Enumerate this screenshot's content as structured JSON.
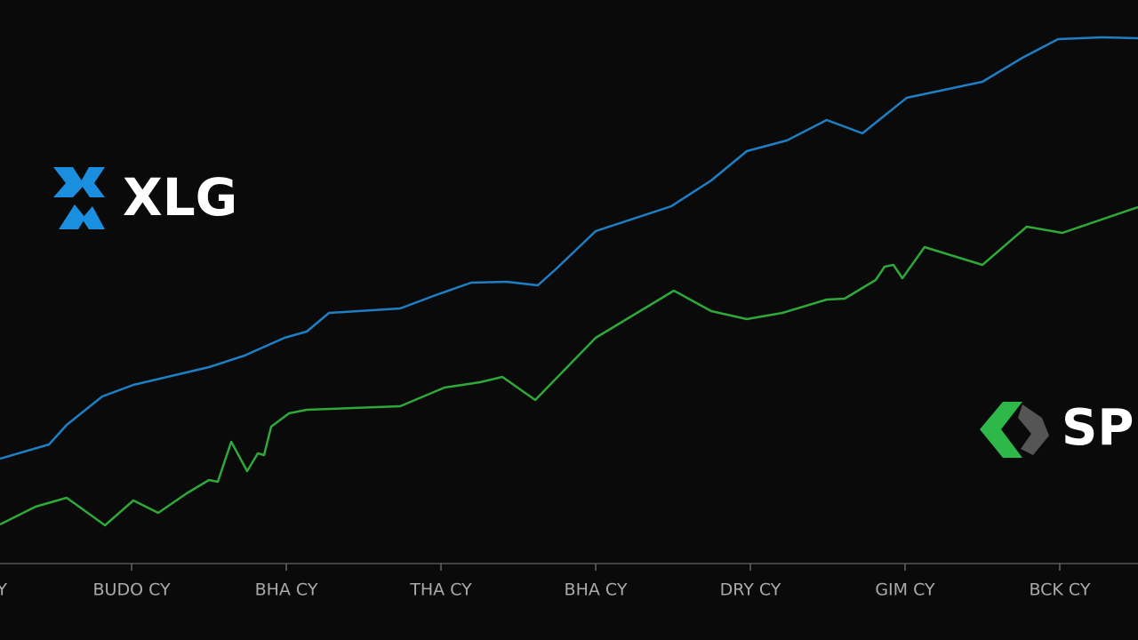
{
  "chart_data": {
    "type": "line",
    "x": [
      0.149,
      0.466,
      0.58,
      0.81,
      1.011,
      1.5,
      1.73,
      1.989,
      2.132,
      2.276,
      2.736,
      2.966,
      3.195,
      3.425,
      3.626,
      3.741,
      4.0,
      4.489,
      4.747,
      4.977,
      5.236,
      5.494,
      5.724,
      6.011,
      6.5,
      6.759,
      6.989,
      7.276,
      7.506
    ],
    "series": [
      {
        "name": "XLG",
        "color": "#1e7fc4",
        "x": [
          0.149,
          0.466,
          0.58,
          0.81,
          1.011,
          1.5,
          1.73,
          1.989,
          2.132,
          2.276,
          2.736,
          2.966,
          3.195,
          3.425,
          3.626,
          3.741,
          4.0,
          4.489,
          4.747,
          4.977,
          5.236,
          5.494,
          5.724,
          6.011,
          6.5,
          6.759,
          6.989,
          7.276,
          7.506
        ],
        "values": [
          118,
          134,
          156,
          188,
          201,
          221,
          234,
          254,
          261,
          282,
          287,
          302,
          316,
          317,
          313,
          331,
          374,
          402,
          431,
          464,
          476,
          499,
          484,
          524,
          542,
          569,
          590,
          592,
          591
        ]
      },
      {
        "name": "SP",
        "color": "#2fa83a",
        "x": [
          0.149,
          0.379,
          0.58,
          0.828,
          1.011,
          1.172,
          1.356,
          1.5,
          1.557,
          1.644,
          1.747,
          1.816,
          1.856,
          1.902,
          2.017,
          2.132,
          2.736,
          3.023,
          3.253,
          3.397,
          3.609,
          4.0,
          4.506,
          4.747,
          4.977,
          5.207,
          5.494,
          5.609,
          5.81,
          5.868,
          5.925,
          5.983,
          6.126,
          6.5,
          6.787,
          7.017,
          7.506
        ],
        "values": [
          44,
          64,
          74,
          43,
          71,
          57,
          79,
          94,
          92,
          137,
          104,
          124,
          122,
          154,
          169,
          173,
          177,
          198,
          204,
          210,
          184,
          254,
          307,
          284,
          275,
          282,
          297,
          298,
          319,
          334,
          336,
          321,
          356,
          336,
          379,
          372,
          401
        ]
      }
    ],
    "xlim": [
      0.149,
      7.506
    ],
    "xticks": [
      {
        "value": 0,
        "label": "Y"
      },
      {
        "value": 1,
        "label": "BUDO CY"
      },
      {
        "value": 2,
        "label": "BHA CY"
      },
      {
        "value": 3,
        "label": "THA CY"
      },
      {
        "value": 4,
        "label": "BHA CY"
      },
      {
        "value": 5,
        "label": "DRY CY"
      },
      {
        "value": 6,
        "label": "GIM CY"
      },
      {
        "value": 7,
        "label": "BCK CY"
      }
    ],
    "ylim": [
      0,
      634
    ]
  }
}
